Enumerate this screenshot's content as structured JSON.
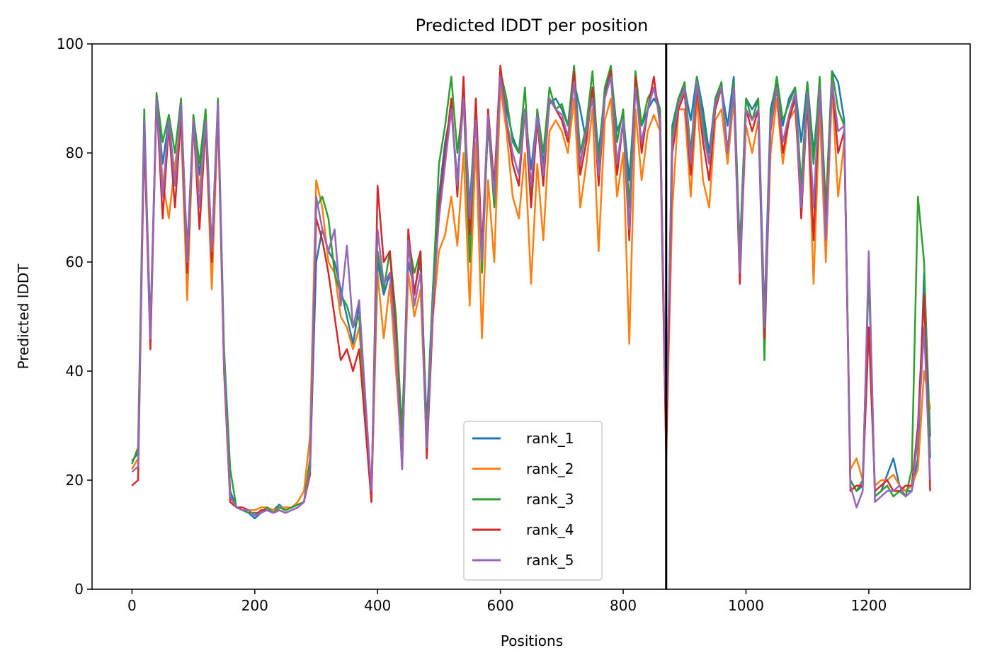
{
  "chart_data": {
    "type": "line",
    "title": "Predicted lDDT per position",
    "xlabel": "Positions",
    "ylabel": "Predicted lDDT",
    "xlim": [
      -65,
      1365
    ],
    "ylim": [
      0,
      100
    ],
    "xticks": [
      0,
      200,
      400,
      600,
      800,
      1000,
      1200
    ],
    "yticks": [
      0,
      20,
      40,
      60,
      80,
      100
    ],
    "grid": false,
    "legend_position": "lower-center",
    "vline_x": 870,
    "vline_color": "#000000",
    "x": [
      0,
      10,
      20,
      30,
      40,
      50,
      60,
      70,
      80,
      90,
      100,
      110,
      120,
      130,
      140,
      150,
      160,
      170,
      180,
      190,
      200,
      210,
      220,
      230,
      240,
      250,
      260,
      270,
      280,
      290,
      300,
      310,
      320,
      330,
      340,
      350,
      360,
      370,
      380,
      390,
      400,
      410,
      420,
      430,
      440,
      450,
      460,
      470,
      480,
      490,
      500,
      510,
      520,
      530,
      540,
      550,
      560,
      570,
      580,
      590,
      600,
      610,
      620,
      630,
      640,
      650,
      660,
      670,
      680,
      690,
      700,
      710,
      720,
      730,
      740,
      750,
      760,
      770,
      780,
      790,
      800,
      810,
      820,
      830,
      840,
      850,
      860,
      870,
      880,
      890,
      900,
      910,
      920,
      930,
      940,
      950,
      960,
      970,
      980,
      990,
      1000,
      1010,
      1020,
      1030,
      1040,
      1050,
      1060,
      1070,
      1080,
      1090,
      1100,
      1110,
      1120,
      1130,
      1140,
      1150,
      1160,
      1170,
      1180,
      1190,
      1200,
      1210,
      1220,
      1230,
      1240,
      1250,
      1260,
      1270,
      1280,
      1290,
      1300
    ],
    "series": [
      {
        "name": "rank_1",
        "color": "#1f77b4",
        "values": [
          23.5,
          25,
          85,
          48,
          90,
          78,
          86,
          75,
          88,
          62,
          86,
          76,
          86,
          62,
          89,
          42,
          18,
          15,
          14.5,
          14,
          13,
          14,
          15,
          14.5,
          15.5,
          14.5,
          15,
          15.5,
          16,
          22,
          60,
          66,
          62,
          60,
          55,
          50,
          45,
          52,
          35,
          17,
          60,
          54,
          58,
          44,
          30,
          60,
          55,
          60,
          30,
          55,
          72,
          82,
          88,
          75,
          90,
          70,
          88,
          62,
          85,
          72,
          94,
          88,
          83,
          80,
          88,
          77,
          87,
          78,
          89,
          90,
          88,
          85,
          93,
          88,
          82,
          92,
          80,
          91,
          95,
          84,
          87,
          75,
          92,
          85,
          88,
          90,
          88,
          27,
          85,
          90,
          92,
          86,
          94,
          88,
          80,
          90,
          92,
          85,
          94,
          62,
          90,
          88,
          90,
          50,
          88,
          93,
          85,
          90,
          92,
          82,
          93,
          80,
          92,
          62,
          95,
          93,
          86,
          20,
          18,
          19,
          60,
          17,
          18,
          21,
          24,
          19,
          18,
          18,
          24,
          58,
          28
        ]
      },
      {
        "name": "rank_2",
        "color": "#ff7f0e",
        "values": [
          22,
          24,
          83,
          45,
          89,
          75,
          68,
          78,
          85,
          53,
          85,
          73,
          85,
          55,
          87,
          40,
          17,
          15,
          14.5,
          14.5,
          14.5,
          15,
          15,
          14.5,
          15,
          15,
          15,
          16,
          18,
          28,
          75,
          70,
          60,
          58,
          50,
          48,
          44,
          48,
          32,
          16,
          58,
          46,
          56,
          40,
          24,
          58,
          50,
          55,
          26,
          50,
          62,
          65,
          72,
          63,
          80,
          52,
          82,
          46,
          75,
          60,
          92,
          84,
          72,
          68,
          80,
          56,
          78,
          64,
          84,
          86,
          84,
          80,
          90,
          70,
          78,
          88,
          62,
          86,
          90,
          72,
          80,
          45,
          88,
          75,
          84,
          87,
          84,
          25,
          70,
          88,
          88,
          72,
          90,
          75,
          70,
          86,
          88,
          78,
          90,
          58,
          85,
          80,
          86,
          46,
          80,
          90,
          78,
          86,
          88,
          72,
          90,
          56,
          88,
          60,
          92,
          72,
          82,
          22,
          24,
          20,
          48,
          19,
          20,
          20,
          21,
          19,
          18,
          19,
          22,
          40,
          33
        ]
      },
      {
        "name": "rank_3",
        "color": "#2ca02c",
        "values": [
          23,
          26,
          88,
          46,
          91,
          82,
          87,
          80,
          90,
          60,
          87,
          78,
          88,
          62,
          90,
          44,
          22,
          15,
          14.5,
          14,
          14,
          14,
          15,
          14,
          15,
          14.5,
          15,
          15.5,
          16,
          24,
          70,
          72,
          68,
          58,
          54,
          52,
          48,
          50,
          34,
          18,
          62,
          55,
          62,
          50,
          28,
          64,
          58,
          62,
          28,
          55,
          78,
          85,
          94,
          80,
          90,
          60,
          90,
          58,
          86,
          70,
          95,
          90,
          82,
          80,
          92,
          72,
          88,
          80,
          92,
          88,
          89,
          85,
          96,
          80,
          85,
          95,
          78,
          92,
          96,
          82,
          88,
          70,
          95,
          85,
          90,
          92,
          88,
          26,
          84,
          90,
          93,
          80,
          94,
          86,
          78,
          90,
          93,
          80,
          93,
          62,
          90,
          86,
          90,
          42,
          86,
          94,
          86,
          89,
          92,
          74,
          93,
          78,
          94,
          70,
          95,
          88,
          85,
          20,
          18,
          20,
          58,
          17,
          18,
          19,
          17,
          18,
          17,
          22,
          72,
          60,
          24
        ]
      },
      {
        "name": "rank_4",
        "color": "#d62728",
        "values": [
          19,
          20,
          84,
          44,
          90,
          68,
          85,
          70,
          87,
          58,
          86,
          66,
          85,
          60,
          88,
          40,
          16,
          15,
          15,
          14.5,
          13.5,
          14.5,
          14.5,
          14,
          14.5,
          14,
          14.5,
          15,
          16,
          21,
          68,
          64,
          58,
          50,
          42,
          44,
          40,
          44,
          30,
          16,
          74,
          60,
          62,
          46,
          22,
          66,
          54,
          62,
          24,
          50,
          70,
          80,
          90,
          72,
          94,
          65,
          90,
          62,
          88,
          74,
          96,
          86,
          78,
          74,
          88,
          70,
          86,
          74,
          90,
          88,
          86,
          82,
          95,
          76,
          82,
          92,
          74,
          90,
          95,
          76,
          86,
          64,
          94,
          80,
          88,
          94,
          85,
          24,
          80,
          88,
          91,
          76,
          92,
          82,
          75,
          88,
          92,
          80,
          92,
          56,
          88,
          84,
          88,
          46,
          84,
          92,
          80,
          86,
          90,
          68,
          90,
          64,
          92,
          66,
          93,
          80,
          84,
          18,
          19,
          19,
          48,
          18,
          19,
          20,
          18,
          18,
          19,
          19,
          30,
          54,
          18
        ]
      },
      {
        "name": "rank_5",
        "color": "#9467bd",
        "values": [
          21.5,
          22.5,
          86,
          46,
          90,
          72,
          86,
          74,
          89,
          60,
          86,
          70,
          86,
          62,
          89,
          41,
          17,
          15,
          14.5,
          14.5,
          13.5,
          14,
          14.5,
          14,
          14.5,
          14,
          14.5,
          15,
          16,
          22,
          72,
          66,
          62,
          66,
          52,
          63,
          48,
          53,
          35,
          18,
          66,
          56,
          58,
          44,
          22,
          64,
          52,
          58,
          26,
          52,
          68,
          78,
          88,
          74,
          90,
          68,
          86,
          60,
          87,
          72,
          94,
          86,
          80,
          76,
          88,
          74,
          87,
          76,
          90,
          88,
          87,
          83,
          93,
          78,
          84,
          90,
          76,
          90,
          94,
          78,
          86,
          66,
          92,
          82,
          88,
          92,
          86,
          30,
          82,
          89,
          92,
          78,
          93,
          84,
          78,
          89,
          92,
          80,
          92,
          58,
          88,
          86,
          88,
          48,
          85,
          92,
          82,
          87,
          91,
          70,
          91,
          70,
          92,
          64,
          93,
          84,
          85,
          19,
          15,
          18,
          62,
          16,
          17,
          18,
          18,
          19,
          17,
          18,
          28,
          48,
          20
        ]
      }
    ]
  }
}
